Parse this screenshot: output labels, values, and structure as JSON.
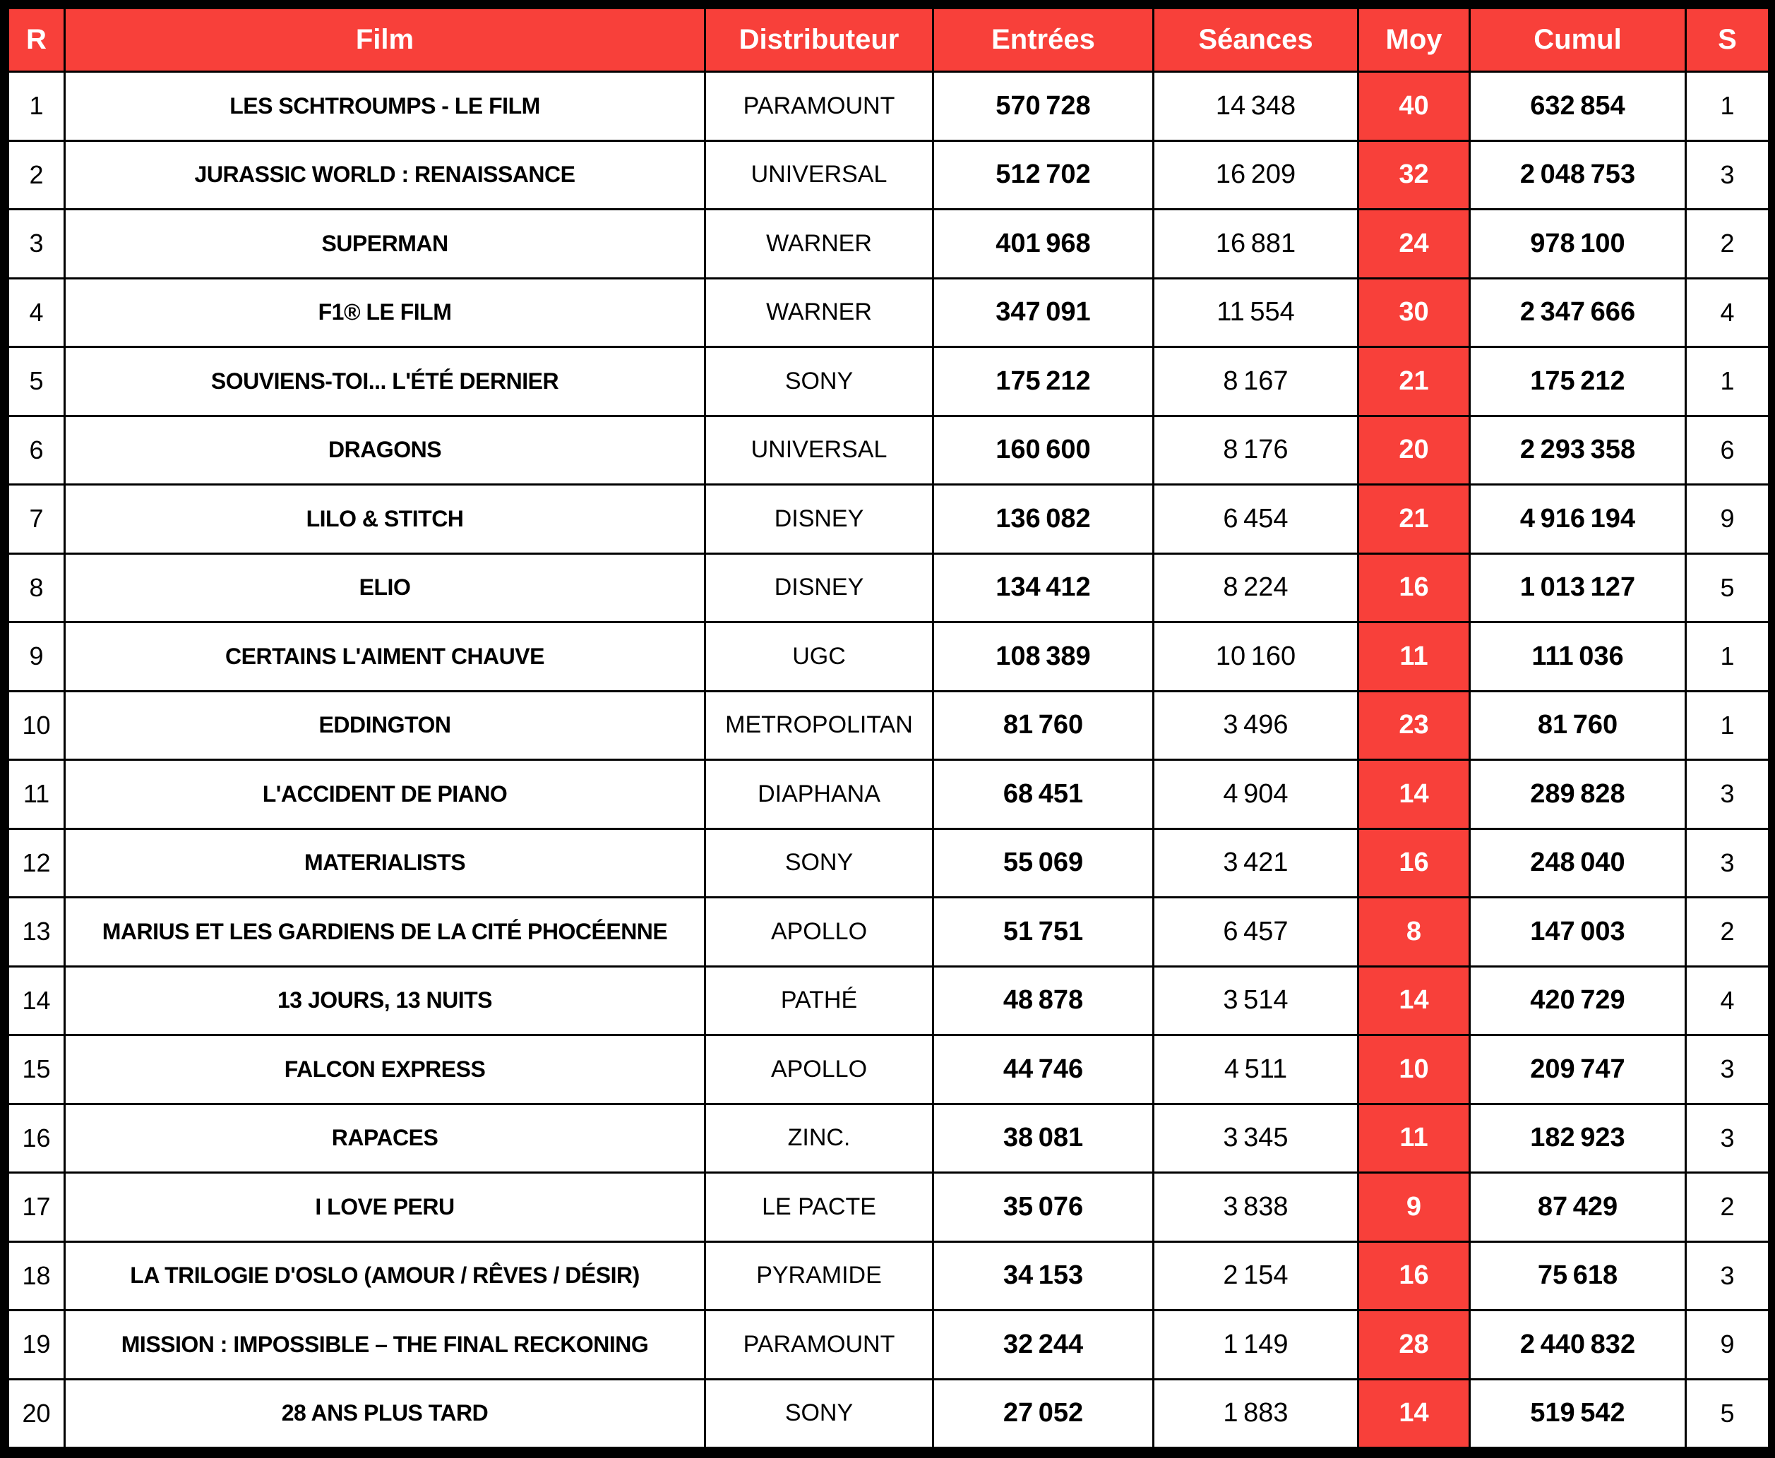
{
  "chart_data": {
    "type": "table",
    "columns": {
      "rank": "R",
      "film": "Film",
      "distributor": "Distributeur",
      "entries": "Entrées",
      "screenings": "Séances",
      "average": "Moy",
      "cumulative": "Cumul",
      "weeks": "S"
    },
    "column_order": [
      "rank",
      "film",
      "distributor",
      "entries",
      "screenings",
      "average",
      "cumulative",
      "weeks"
    ],
    "rows": [
      {
        "rank": 1,
        "film": "LES SCHTROUMPS - LE FILM",
        "distributor": "PARAMOUNT",
        "entries": 570728,
        "screenings": 14348,
        "average": 40,
        "cumulative": 632854,
        "weeks": 1
      },
      {
        "rank": 2,
        "film": "JURASSIC WORLD : RENAISSANCE",
        "distributor": "UNIVERSAL",
        "entries": 512702,
        "screenings": 16209,
        "average": 32,
        "cumulative": 2048753,
        "weeks": 3
      },
      {
        "rank": 3,
        "film": "SUPERMAN",
        "distributor": "WARNER",
        "entries": 401968,
        "screenings": 16881,
        "average": 24,
        "cumulative": 978100,
        "weeks": 2
      },
      {
        "rank": 4,
        "film": "F1® LE FILM",
        "distributor": "WARNER",
        "entries": 347091,
        "screenings": 11554,
        "average": 30,
        "cumulative": 2347666,
        "weeks": 4
      },
      {
        "rank": 5,
        "film": "SOUVIENS-TOI... L'ÉTÉ DERNIER",
        "distributor": "SONY",
        "entries": 175212,
        "screenings": 8167,
        "average": 21,
        "cumulative": 175212,
        "weeks": 1
      },
      {
        "rank": 6,
        "film": "DRAGONS",
        "distributor": "UNIVERSAL",
        "entries": 160600,
        "screenings": 8176,
        "average": 20,
        "cumulative": 2293358,
        "weeks": 6
      },
      {
        "rank": 7,
        "film": "LILO & STITCH",
        "distributor": "DISNEY",
        "entries": 136082,
        "screenings": 6454,
        "average": 21,
        "cumulative": 4916194,
        "weeks": 9
      },
      {
        "rank": 8,
        "film": "ELIO",
        "distributor": "DISNEY",
        "entries": 134412,
        "screenings": 8224,
        "average": 16,
        "cumulative": 1013127,
        "weeks": 5
      },
      {
        "rank": 9,
        "film": "CERTAINS L'AIMENT CHAUVE",
        "distributor": "UGC",
        "entries": 108389,
        "screenings": 10160,
        "average": 11,
        "cumulative": 111036,
        "weeks": 1
      },
      {
        "rank": 10,
        "film": "EDDINGTON",
        "distributor": "METROPOLITAN",
        "entries": 81760,
        "screenings": 3496,
        "average": 23,
        "cumulative": 81760,
        "weeks": 1
      },
      {
        "rank": 11,
        "film": "L'ACCIDENT DE PIANO",
        "distributor": "DIAPHANA",
        "entries": 68451,
        "screenings": 4904,
        "average": 14,
        "cumulative": 289828,
        "weeks": 3
      },
      {
        "rank": 12,
        "film": "MATERIALISTS",
        "distributor": "SONY",
        "entries": 55069,
        "screenings": 3421,
        "average": 16,
        "cumulative": 248040,
        "weeks": 3
      },
      {
        "rank": 13,
        "film": "MARIUS ET LES GARDIENS DE LA CITÉ PHOCÉENNE",
        "distributor": "APOLLO",
        "entries": 51751,
        "screenings": 6457,
        "average": 8,
        "cumulative": 147003,
        "weeks": 2
      },
      {
        "rank": 14,
        "film": "13 JOURS, 13 NUITS",
        "distributor": "PATHÉ",
        "entries": 48878,
        "screenings": 3514,
        "average": 14,
        "cumulative": 420729,
        "weeks": 4
      },
      {
        "rank": 15,
        "film": "FALCON EXPRESS",
        "distributor": "APOLLO",
        "entries": 44746,
        "screenings": 4511,
        "average": 10,
        "cumulative": 209747,
        "weeks": 3
      },
      {
        "rank": 16,
        "film": "RAPACES",
        "distributor": "ZINC.",
        "entries": 38081,
        "screenings": 3345,
        "average": 11,
        "cumulative": 182923,
        "weeks": 3
      },
      {
        "rank": 17,
        "film": "I LOVE PERU",
        "distributor": "LE PACTE",
        "entries": 35076,
        "screenings": 3838,
        "average": 9,
        "cumulative": 87429,
        "weeks": 2
      },
      {
        "rank": 18,
        "film": "LA TRILOGIE D'OSLO (AMOUR / RÊVES / DÉSIR)",
        "distributor": "PYRAMIDE",
        "entries": 34153,
        "screenings": 2154,
        "average": 16,
        "cumulative": 75618,
        "weeks": 3
      },
      {
        "rank": 19,
        "film": "MISSION : IMPOSSIBLE – THE FINAL RECKONING",
        "distributor": "PARAMOUNT",
        "entries": 32244,
        "screenings": 1149,
        "average": 28,
        "cumulative": 2440832,
        "weeks": 9
      },
      {
        "rank": 20,
        "film": "28 ANS PLUS TARD",
        "distributor": "SONY",
        "entries": 27052,
        "screenings": 1883,
        "average": 14,
        "cumulative": 519542,
        "weeks": 5
      }
    ]
  },
  "colors": {
    "accent": "#f8403a",
    "on_accent": "#ffffff",
    "grid": "#000000",
    "row_bg": "#ffffff",
    "text": "#000000",
    "frame_bg": "#000000"
  }
}
